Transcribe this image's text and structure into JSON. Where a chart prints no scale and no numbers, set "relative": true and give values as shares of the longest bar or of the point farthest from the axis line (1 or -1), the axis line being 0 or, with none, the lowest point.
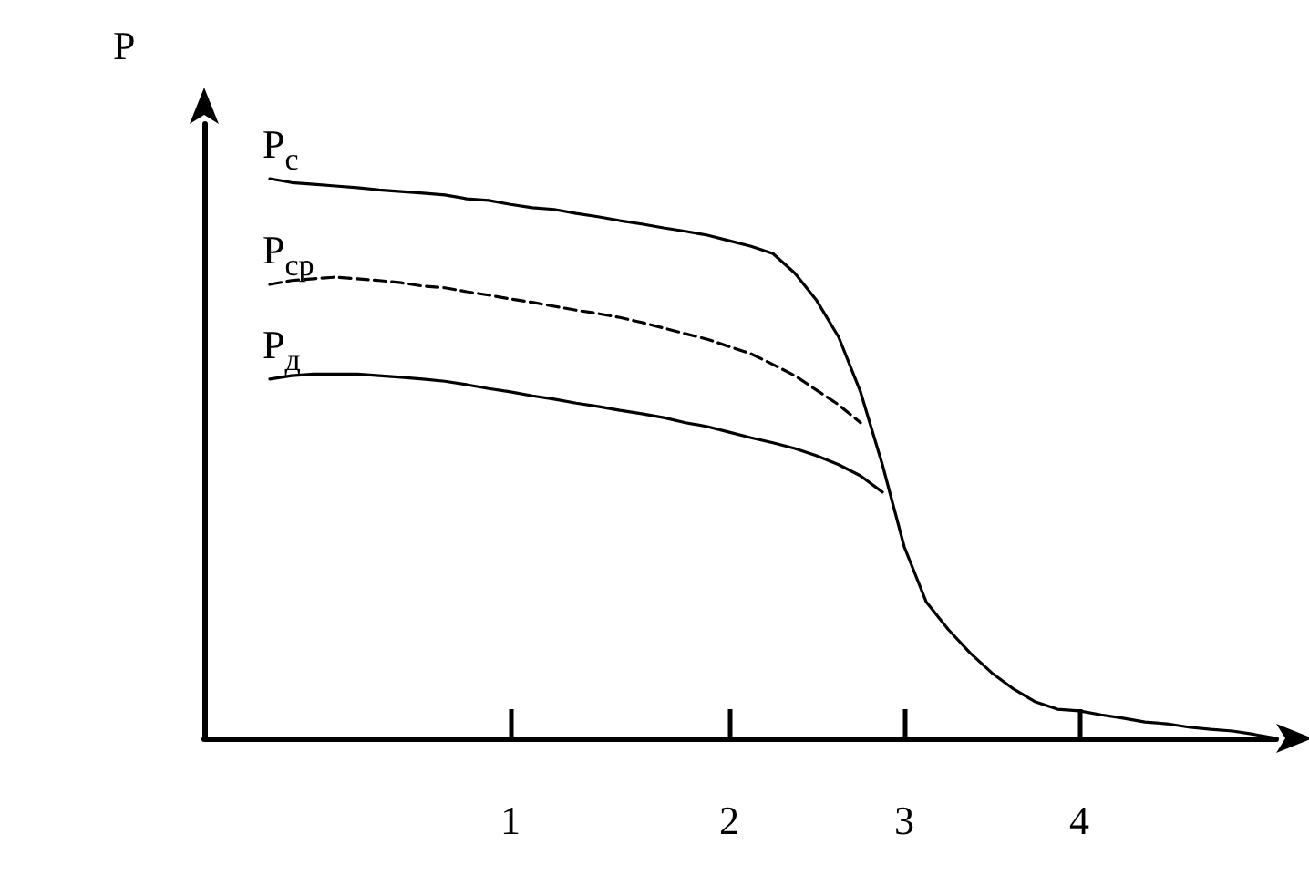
{
  "chart_data": {
    "type": "line",
    "relative": true,
    "ylabel": "P",
    "categories": [
      null,
      null,
      null,
      null,
      null,
      null,
      null,
      null,
      null,
      null,
      null,
      null,
      null,
      null,
      "1",
      null,
      null,
      null,
      null,
      null,
      null,
      null,
      null,
      null,
      "2",
      null,
      null,
      null,
      null,
      null,
      null,
      null,
      "3",
      null,
      null,
      null,
      null,
      null,
      null,
      null,
      "4",
      null,
      null,
      null,
      null,
      null,
      null,
      null,
      null,
      null
    ],
    "grid": false,
    "legend": false,
    "marker": "none",
    "series": [
      {
        "name": "P$_{с}$",
        "color": "#000000",
        "line_style": "solid",
        "values": [
          null,
          null,
          null,
          1.0,
          0.993,
          0.99,
          0.987,
          0.984,
          0.98,
          0.977,
          0.974,
          0.971,
          0.964,
          0.961,
          0.954,
          0.948,
          0.945,
          0.938,
          0.932,
          0.925,
          0.919,
          0.912,
          0.906,
          0.899,
          0.889,
          0.879,
          0.866,
          0.831,
          0.782,
          0.717,
          0.619,
          0.489,
          0.342,
          0.244,
          0.195,
          0.153,
          0.117,
          0.088,
          0.065,
          0.052,
          0.049,
          0.042,
          0.036,
          0.029,
          0.026,
          0.02,
          0.016,
          0.013,
          0.007,
          0
        ]
      },
      {
        "name": "P$_{ср}$",
        "color": "#000000",
        "line_style": "dashed",
        "values": [
          null,
          null,
          null,
          0.811,
          0.818,
          0.821,
          0.824,
          0.821,
          0.818,
          0.814,
          0.808,
          0.805,
          0.798,
          0.792,
          0.785,
          0.779,
          0.772,
          0.765,
          0.759,
          0.752,
          0.743,
          0.733,
          0.723,
          0.713,
          0.7,
          0.687,
          0.668,
          0.648,
          0.622,
          0.596,
          0.564,
          null,
          null,
          null,
          null,
          null,
          null,
          null,
          null,
          null,
          null,
          null,
          null,
          null,
          null,
          null,
          null,
          null,
          null,
          null
        ]
      },
      {
        "name": "P$_{д}$",
        "color": "#000000",
        "line_style": "solid",
        "values": [
          null,
          null,
          null,
          0.642,
          0.648,
          0.651,
          0.651,
          0.651,
          0.648,
          0.645,
          0.642,
          0.638,
          0.632,
          0.625,
          0.619,
          0.612,
          0.606,
          0.599,
          0.593,
          0.586,
          0.58,
          0.573,
          0.564,
          0.557,
          0.547,
          0.537,
          0.528,
          0.518,
          0.505,
          0.489,
          0.469,
          0.44,
          null,
          null,
          null,
          null,
          null,
          null,
          null,
          null,
          null,
          null,
          null,
          null,
          null,
          null,
          null,
          null,
          null,
          null
        ]
      }
    ]
  }
}
